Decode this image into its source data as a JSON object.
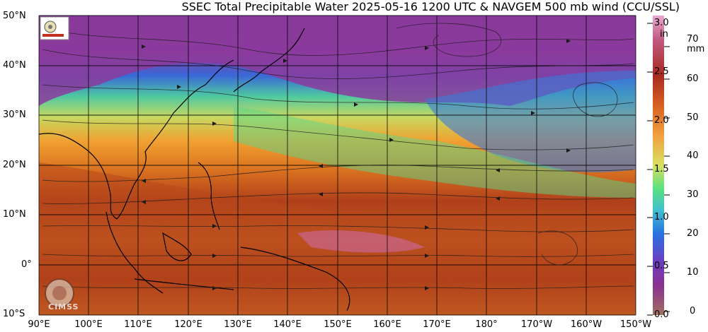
{
  "title": "SSEC Total Precipitable Water  2025-05-16 1200 UTC & NAVGEM 500 mb wind (CCU/SSL)",
  "map": {
    "lat_labels": [
      "50°N",
      "40°N",
      "30°N",
      "20°N",
      "10°N",
      "0°",
      "10°S"
    ],
    "lon_labels": [
      "90°E",
      "100°E",
      "110°E",
      "120°E",
      "130°E",
      "140°E",
      "150°E",
      "160°E",
      "170°E",
      "180°",
      "170°W",
      "160°W",
      "150°W"
    ],
    "lat_range": [
      -10,
      50
    ],
    "lon_range_east": [
      90,
      210
    ]
  },
  "colorbar": {
    "inch_unit": "in",
    "mm_unit": "mm",
    "inch_ticks": [
      "3.0",
      "2.5",
      "2.0",
      "1.5",
      "1.0",
      "0.5",
      "0.0"
    ],
    "mm_ticks": [
      "70",
      "60",
      "50",
      "40",
      "30",
      "20",
      "10",
      "0"
    ]
  },
  "logos": {
    "cimss_text": "CIMSS"
  },
  "colors": {
    "dry_purple": "#8a2f9a",
    "moist_blue": "#2a7fe0",
    "mid_green": "#5ee07a",
    "orange": "#f0a030",
    "brown_high": "#b0401a",
    "pink_max": "#d070c0"
  }
}
